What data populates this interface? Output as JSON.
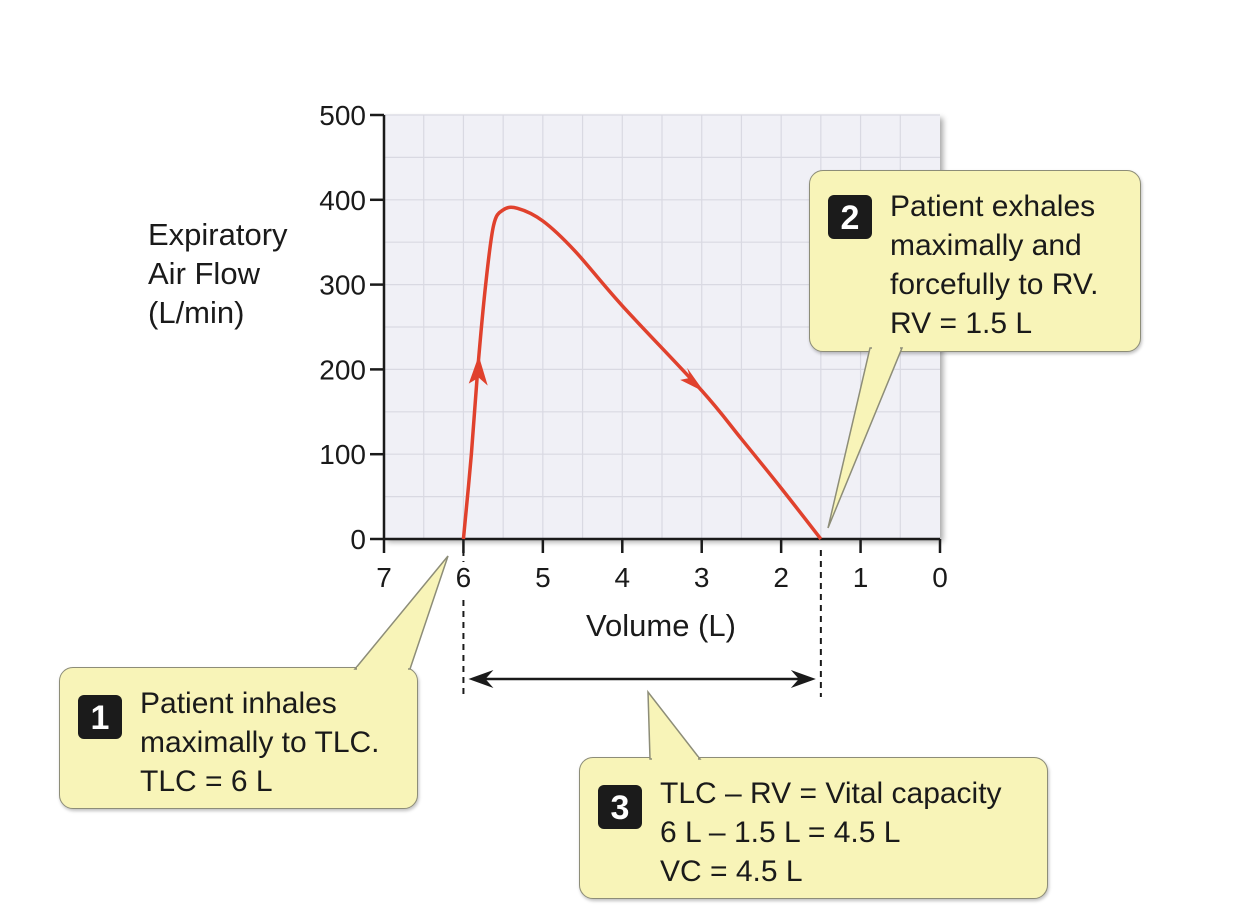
{
  "chart_data": {
    "type": "line",
    "xlabel": "Volume (L)",
    "ylabel": [
      "Expiratory",
      "Air Flow",
      "(L/min)"
    ],
    "x_reversed": true,
    "xlim": [
      7,
      0
    ],
    "ylim": [
      0,
      500
    ],
    "x_ticks": [
      "7",
      "6",
      "5",
      "4",
      "3",
      "2",
      "1",
      "0"
    ],
    "x_tick_values": [
      7,
      6,
      5,
      4,
      3,
      2,
      1,
      0
    ],
    "y_ticks": [
      "500",
      "400",
      "300",
      "200",
      "100",
      "0"
    ],
    "y_tick_values": [
      500,
      400,
      300,
      200,
      100,
      0
    ],
    "grid": true,
    "line_color": "#e0412d",
    "series": [
      {
        "points": [
          [
            6.0,
            0
          ],
          [
            5.9,
            100
          ],
          [
            5.82,
            200
          ],
          [
            5.72,
            300
          ],
          [
            5.62,
            370
          ],
          [
            5.5,
            388
          ],
          [
            5.32,
            390
          ],
          [
            5.0,
            375
          ],
          [
            4.6,
            340
          ],
          [
            4.0,
            275
          ],
          [
            3.0,
            175
          ],
          [
            2.5,
            118
          ],
          [
            2.0,
            60
          ],
          [
            1.5,
            0
          ]
        ],
        "arrows": [
          [
            5.82,
            195,
            "up"
          ],
          [
            3.12,
            190,
            "down"
          ]
        ]
      }
    ],
    "reference_lines": {
      "tlc": 6,
      "rv": 1.5
    }
  },
  "callouts": [
    {
      "number": "1",
      "lines": [
        "Patient inhales",
        "maximally to TLC.",
        "TLC = 6 L"
      ]
    },
    {
      "number": "2",
      "lines": [
        "Patient exhales",
        "maximally and",
        "forcefully to RV.",
        "RV = 1.5 L"
      ]
    },
    {
      "number": "3",
      "lines": [
        "TLC – RV = Vital capacity",
        "6 L – 1.5 L = 4.5 L",
        "VC = 4.5 L"
      ]
    }
  ],
  "colors": {
    "plot_bg": "#f0f0f6",
    "grid": "#d9d9e2",
    "callout_bg": "#f8f4b8",
    "axis": "#1a1a1a"
  }
}
